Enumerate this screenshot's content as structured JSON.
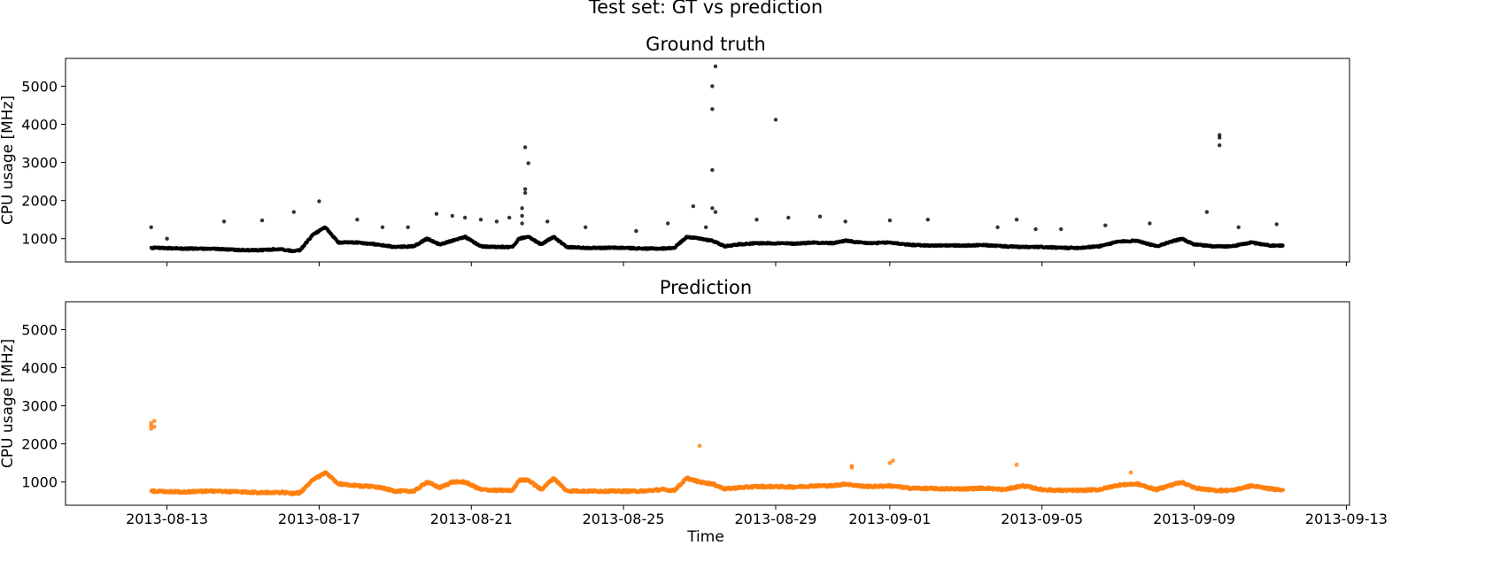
{
  "figure": {
    "title": "Test set: GT vs prediction",
    "xlabel": "Time"
  },
  "colors": {
    "ground_truth": "#000000",
    "prediction": "#ff7f0e",
    "axes": "#000000",
    "background": "#ffffff"
  },
  "chart_data": [
    {
      "type": "scatter",
      "title": "Ground truth",
      "xlabel": "",
      "ylabel": "CPU usage [MHz]",
      "xlim": [
        "2013-08-10T08:00",
        "2013-09-13T02:00"
      ],
      "ylim": [
        390,
        5730
      ],
      "yticks": [
        1000,
        2000,
        3000,
        4000,
        5000
      ],
      "xticks": [
        "2013-08-13",
        "2013-08-17",
        "2013-08-21",
        "2013-08-25",
        "2013-08-29",
        "2013-09-01",
        "2013-09-05",
        "2013-09-09",
        "2013-09-13"
      ],
      "xtick_labels_visible": false,
      "grid": false,
      "series": [
        {
          "color": "#000000",
          "baseline_date": [
            "2013-08-12T14:00",
            "2013-08-13T12:00",
            "2013-08-14T00:00",
            "2013-08-15T00:00",
            "2013-08-15T12:00",
            "2013-08-16T00:00",
            "2013-08-16T06:00",
            "2013-08-16T12:00",
            "2013-08-16T20:00",
            "2013-08-17T04:00",
            "2013-08-17T12:00",
            "2013-08-18T00:00",
            "2013-08-18T12:00",
            "2013-08-19T00:00",
            "2013-08-19T12:00",
            "2013-08-19T20:00",
            "2013-08-20T04:00",
            "2013-08-20T12:00",
            "2013-08-20T20:00",
            "2013-08-21T06:00",
            "2013-08-21T16:00",
            "2013-08-22T02:00",
            "2013-08-22T06:00",
            "2013-08-22T12:00",
            "2013-08-22T20:00",
            "2013-08-23T04:00",
            "2013-08-23T12:00",
            "2013-08-24T00:00",
            "2013-08-24T12:00",
            "2013-08-25T00:00",
            "2013-08-25T12:00",
            "2013-08-26T00:00",
            "2013-08-26T08:00",
            "2013-08-26T16:00",
            "2013-08-27T00:00",
            "2013-08-27T08:00",
            "2013-08-27T16:00",
            "2013-08-28T00:00",
            "2013-08-28T12:00",
            "2013-08-29T00:00",
            "2013-08-29T12:00",
            "2013-08-30T00:00",
            "2013-08-30T12:00",
            "2013-08-30T20:00",
            "2013-08-31T04:00",
            "2013-08-31T12:00",
            "2013-09-01T00:00",
            "2013-09-01T12:00",
            "2013-09-02T00:00",
            "2013-09-02T12:00",
            "2013-09-03T00:00",
            "2013-09-03T12:00",
            "2013-09-04T00:00",
            "2013-09-04T12:00",
            "2013-09-05T00:00",
            "2013-09-05T12:00",
            "2013-09-06T00:00",
            "2013-09-06T12:00",
            "2013-09-07T00:00",
            "2013-09-07T12:00",
            "2013-09-08T00:00",
            "2013-09-08T08:00",
            "2013-09-08T16:00",
            "2013-09-09T00:00",
            "2013-09-09T12:00",
            "2013-09-10T00:00",
            "2013-09-10T12:00",
            "2013-09-11T00:00",
            "2013-09-11T08:00"
          ],
          "baseline_value": [
            760,
            740,
            740,
            700,
            700,
            730,
            680,
            700,
            1100,
            1300,
            900,
            900,
            850,
            780,
            800,
            1000,
            850,
            950,
            1050,
            800,
            780,
            780,
            1000,
            1050,
            850,
            1050,
            780,
            760,
            760,
            760,
            740,
            740,
            760,
            1050,
            1000,
            950,
            800,
            850,
            880,
            880,
            870,
            900,
            880,
            950,
            900,
            880,
            900,
            840,
            820,
            820,
            820,
            830,
            800,
            780,
            780,
            760,
            760,
            800,
            920,
            950,
            800,
            900,
            1000,
            850,
            800,
            800,
            900,
            820,
            820
          ],
          "outlier_x": [
            "2013-08-12T14:00",
            "2013-08-13T00:00",
            "2013-08-14T12:00",
            "2013-08-15T12:00",
            "2013-08-16T08:00",
            "2013-08-17T00:00",
            "2013-08-18T00:00",
            "2013-08-18T16:00",
            "2013-08-19T08:00",
            "2013-08-20T02:00",
            "2013-08-20T12:00",
            "2013-08-20T20:00",
            "2013-08-21T06:00",
            "2013-08-21T16:00",
            "2013-08-22T00:00",
            "2013-08-22T08:00",
            "2013-08-22T08:00",
            "2013-08-22T08:00",
            "2013-08-22T10:00",
            "2013-08-22T10:00",
            "2013-08-22T10:00",
            "2013-08-22T12:00",
            "2013-08-23T00:00",
            "2013-08-24T00:00",
            "2013-08-25T08:00",
            "2013-08-26T04:00",
            "2013-08-26T20:00",
            "2013-08-27T04:00",
            "2013-08-27T08:00",
            "2013-08-27T08:00",
            "2013-08-27T08:00",
            "2013-08-27T08:00",
            "2013-08-27T10:00",
            "2013-08-27T10:00",
            "2013-08-28T12:00",
            "2013-08-29T00:00",
            "2013-08-29T08:00",
            "2013-08-30T04:00",
            "2013-08-30T20:00",
            "2013-09-01T00:00",
            "2013-09-02T00:00",
            "2013-09-03T20:00",
            "2013-09-04T08:00",
            "2013-09-04T20:00",
            "2013-09-05T12:00",
            "2013-09-06T16:00",
            "2013-09-07T20:00",
            "2013-09-09T08:00",
            "2013-09-09T16:00",
            "2013-09-09T16:00",
            "2013-09-09T16:00",
            "2013-09-10T04:00",
            "2013-09-11T04:00"
          ],
          "outlier_y": [
            1300,
            1000,
            1450,
            1480,
            1700,
            1980,
            1500,
            1300,
            1300,
            1650,
            1600,
            1550,
            1500,
            1450,
            1550,
            1400,
            1600,
            1800,
            2300,
            2200,
            3400,
            2980,
            1450,
            1300,
            1200,
            1400,
            1850,
            1300,
            4400,
            5000,
            2800,
            1800,
            5520,
            1700,
            1500,
            4120,
            1550,
            1580,
            1450,
            1480,
            1500,
            1300,
            1500,
            1250,
            1250,
            1350,
            1400,
            1700,
            3450,
            3650,
            3720,
            1300,
            1380
          ]
        }
      ]
    },
    {
      "type": "scatter",
      "title": "Prediction",
      "xlabel": "Time",
      "ylabel": "CPU usage [MHz]",
      "xlim": [
        "2013-08-10T08:00",
        "2013-09-13T02:00"
      ],
      "ylim": [
        390,
        5730
      ],
      "yticks": [
        1000,
        2000,
        3000,
        4000,
        5000
      ],
      "xticks": [
        "2013-08-13",
        "2013-08-17",
        "2013-08-21",
        "2013-08-25",
        "2013-08-29",
        "2013-09-01",
        "2013-09-05",
        "2013-09-09",
        "2013-09-13"
      ],
      "xtick_labels": [
        "2013-08-13",
        "2013-08-17",
        "2013-08-21",
        "2013-08-25",
        "2013-08-29",
        "2013-09-01",
        "2013-09-05",
        "2013-09-09",
        "2013-09-13"
      ],
      "grid": false,
      "series": [
        {
          "color": "#ff7f0e",
          "baseline_date": [
            "2013-08-12T14:00",
            "2013-08-13T12:00",
            "2013-08-14T00:00",
            "2013-08-15T00:00",
            "2013-08-15T12:00",
            "2013-08-16T00:00",
            "2013-08-16T06:00",
            "2013-08-16T12:00",
            "2013-08-16T20:00",
            "2013-08-17T04:00",
            "2013-08-17T12:00",
            "2013-08-18T00:00",
            "2013-08-18T12:00",
            "2013-08-19T00:00",
            "2013-08-19T12:00",
            "2013-08-19T20:00",
            "2013-08-20T04:00",
            "2013-08-20T12:00",
            "2013-08-20T20:00",
            "2013-08-21T06:00",
            "2013-08-21T16:00",
            "2013-08-22T02:00",
            "2013-08-22T06:00",
            "2013-08-22T12:00",
            "2013-08-22T20:00",
            "2013-08-23T04:00",
            "2013-08-23T12:00",
            "2013-08-24T00:00",
            "2013-08-24T12:00",
            "2013-08-25T00:00",
            "2013-08-25T12:00",
            "2013-08-26T00:00",
            "2013-08-26T08:00",
            "2013-08-26T16:00",
            "2013-08-27T00:00",
            "2013-08-27T08:00",
            "2013-08-27T16:00",
            "2013-08-28T00:00",
            "2013-08-28T12:00",
            "2013-08-29T00:00",
            "2013-08-29T12:00",
            "2013-08-30T00:00",
            "2013-08-30T12:00",
            "2013-08-30T20:00",
            "2013-08-31T04:00",
            "2013-08-31T12:00",
            "2013-09-01T00:00",
            "2013-09-01T12:00",
            "2013-09-02T00:00",
            "2013-09-02T12:00",
            "2013-09-03T00:00",
            "2013-09-03T12:00",
            "2013-09-04T00:00",
            "2013-09-04T12:00",
            "2013-09-05T00:00",
            "2013-09-05T12:00",
            "2013-09-06T00:00",
            "2013-09-06T12:00",
            "2013-09-07T00:00",
            "2013-09-07T12:00",
            "2013-09-08T00:00",
            "2013-09-08T08:00",
            "2013-09-08T16:00",
            "2013-09-09T00:00",
            "2013-09-09T12:00",
            "2013-09-10T00:00",
            "2013-09-10T12:00",
            "2013-09-11T00:00",
            "2013-09-11T08:00"
          ],
          "baseline_value": [
            760,
            740,
            760,
            740,
            720,
            730,
            700,
            720,
            1050,
            1250,
            950,
            900,
            880,
            760,
            760,
            1000,
            850,
            1000,
            1000,
            800,
            780,
            780,
            1050,
            1050,
            800,
            1100,
            770,
            760,
            760,
            760,
            760,
            800,
            780,
            1100,
            1000,
            950,
            820,
            850,
            880,
            880,
            870,
            900,
            900,
            950,
            900,
            880,
            900,
            840,
            830,
            820,
            820,
            840,
            800,
            900,
            800,
            780,
            780,
            800,
            920,
            950,
            800,
            900,
            1000,
            850,
            780,
            780,
            900,
            820,
            800
          ],
          "outlier_x": [
            "2013-08-12T14:00",
            "2013-08-12T14:00",
            "2013-08-12T14:00",
            "2013-08-12T16:00",
            "2013-08-12T16:00",
            "2013-08-27T00:00",
            "2013-08-31T00:00",
            "2013-08-31T00:00",
            "2013-09-01T00:00",
            "2013-09-01T02:00",
            "2013-09-04T08:00",
            "2013-09-07T08:00"
          ],
          "outlier_y": [
            2400,
            2480,
            2550,
            2450,
            2600,
            1950,
            1380,
            1420,
            1500,
            1560,
            1450,
            1250
          ]
        }
      ]
    }
  ]
}
